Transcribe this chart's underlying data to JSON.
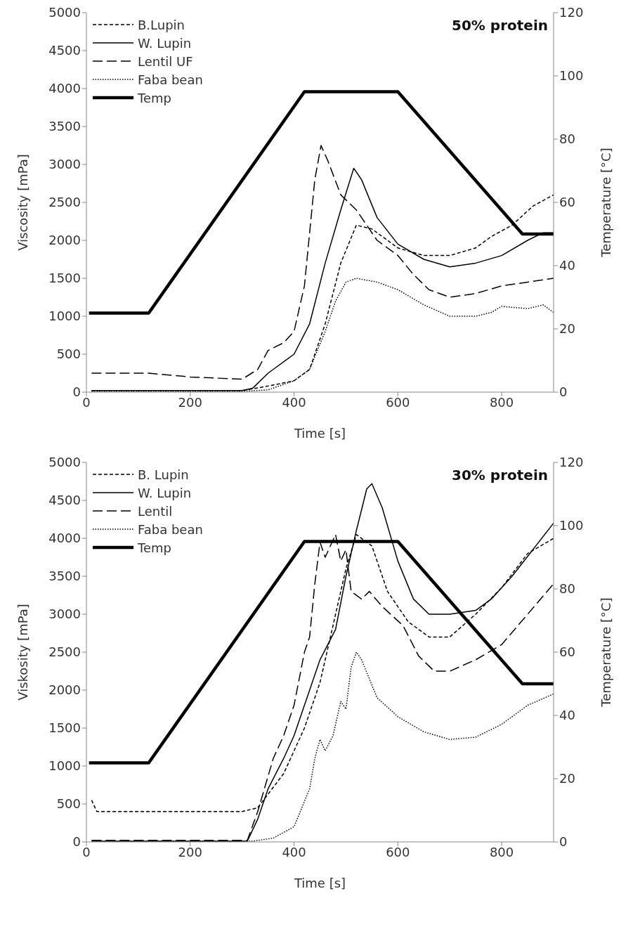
{
  "chart_data": [
    {
      "type": "line",
      "title": "50% protein",
      "xlabel": "Time [s]",
      "ylabel": "Viscosity [mPa]",
      "y2label": "Temperature [°C]",
      "xlim": [
        0,
        900
      ],
      "xticks": [
        0,
        200,
        400,
        600,
        800
      ],
      "ylim": [
        0,
        5000
      ],
      "yticks": [
        0,
        500,
        1000,
        1500,
        2000,
        2500,
        3000,
        3500,
        4000,
        4500,
        5000
      ],
      "y2lim": [
        0,
        120
      ],
      "y2ticks": [
        0,
        20,
        40,
        60,
        80,
        100,
        120
      ],
      "legend": "top left",
      "marker": "none",
      "series": [
        {
          "name": "B.Lupin",
          "color": "#000000",
          "line_style": "dashed",
          "x": [
            10,
            300,
            350,
            400,
            430,
            460,
            490,
            520,
            550,
            600,
            650,
            700,
            750,
            780,
            820,
            860,
            900
          ],
          "values": [
            20,
            20,
            80,
            150,
            300,
            900,
            1700,
            2200,
            2150,
            1900,
            1800,
            1800,
            1900,
            2050,
            2200,
            2450,
            2600
          ]
        },
        {
          "name": "W. Lupin",
          "color": "#000000",
          "line_style": "solid",
          "x": [
            10,
            300,
            320,
            350,
            400,
            430,
            460,
            490,
            515,
            530,
            560,
            600,
            650,
            700,
            750,
            800,
            850,
            880,
            900
          ],
          "values": [
            20,
            20,
            50,
            250,
            500,
            900,
            1700,
            2400,
            2950,
            2800,
            2300,
            1950,
            1750,
            1650,
            1700,
            1800,
            2000,
            2100,
            2100
          ]
        },
        {
          "name": "Lentil UF",
          "color": "#000000",
          "line_style": "dashed",
          "x": [
            10,
            120,
            200,
            300,
            330,
            350,
            380,
            400,
            420,
            440,
            452,
            465,
            490,
            520,
            560,
            600,
            630,
            660,
            700,
            750,
            800,
            850,
            900
          ],
          "values": [
            250,
            250,
            200,
            170,
            300,
            550,
            650,
            800,
            1400,
            2800,
            3250,
            3050,
            2600,
            2400,
            2000,
            1800,
            1550,
            1350,
            1250,
            1300,
            1400,
            1450,
            1500
          ]
        },
        {
          "name": "Faba bean",
          "color": "#000000",
          "line_style": "dotted",
          "x": [
            10,
            300,
            350,
            400,
            430,
            460,
            480,
            500,
            520,
            560,
            600,
            650,
            700,
            750,
            780,
            800,
            850,
            880,
            900
          ],
          "values": [
            10,
            10,
            30,
            150,
            300,
            800,
            1200,
            1450,
            1500,
            1450,
            1350,
            1150,
            1000,
            1000,
            1050,
            1130,
            1100,
            1150,
            1050
          ]
        },
        {
          "name": "Temp",
          "color": "#000000",
          "line_style": "solid",
          "axis": "y2",
          "x": [
            5,
            120,
            420,
            600,
            840,
            900
          ],
          "values": [
            25,
            25,
            95,
            95,
            50,
            50
          ]
        }
      ]
    },
    {
      "type": "line",
      "title": "30% protein",
      "xlabel": "Time [s]",
      "ylabel": "Viskosity [mPa]",
      "y2label": "Temperature [°C]",
      "xlim": [
        0,
        900
      ],
      "xticks": [
        0,
        200,
        400,
        600,
        800
      ],
      "ylim": [
        0,
        5000
      ],
      "yticks": [
        0,
        500,
        1000,
        1500,
        2000,
        2500,
        3000,
        3500,
        4000,
        4500,
        5000
      ],
      "y2lim": [
        0,
        120
      ],
      "y2ticks": [
        0,
        20,
        40,
        60,
        80,
        100,
        120
      ],
      "legend": "top left",
      "marker": "none",
      "series": [
        {
          "name": "B. Lupin",
          "color": "#000000",
          "line_style": "dashed",
          "x": [
            10,
            20,
            300,
            330,
            380,
            420,
            450,
            480,
            500,
            520,
            550,
            580,
            620,
            660,
            700,
            750,
            800,
            850,
            900
          ],
          "values": [
            550,
            400,
            400,
            450,
            900,
            1500,
            2100,
            3000,
            3600,
            4050,
            3900,
            3300,
            2900,
            2700,
            2700,
            3000,
            3350,
            3800,
            4000
          ]
        },
        {
          "name": "W. Lupin",
          "color": "#000000",
          "line_style": "solid",
          "x": [
            10,
            310,
            330,
            350,
            380,
            400,
            430,
            450,
            480,
            500,
            520,
            540,
            550,
            570,
            600,
            630,
            660,
            700,
            750,
            780,
            820,
            860,
            900
          ],
          "values": [
            10,
            10,
            300,
            700,
            1100,
            1400,
            2000,
            2400,
            2800,
            3500,
            4100,
            4650,
            4720,
            4400,
            3700,
            3200,
            3000,
            3000,
            3050,
            3200,
            3500,
            3850,
            4200
          ]
        },
        {
          "name": "Lentil",
          "color": "#000000",
          "line_style": "dashed",
          "x": [
            10,
            310,
            330,
            360,
            380,
            400,
            420,
            430,
            440,
            450,
            460,
            470,
            480,
            490,
            500,
            510,
            530,
            545,
            570,
            610,
            640,
            670,
            700,
            750,
            800,
            850,
            900
          ],
          "values": [
            20,
            20,
            400,
            1100,
            1400,
            1800,
            2500,
            2700,
            3400,
            3950,
            3750,
            3900,
            4050,
            3700,
            3850,
            3300,
            3200,
            3300,
            3100,
            2850,
            2450,
            2250,
            2250,
            2400,
            2600,
            3000,
            3400
          ]
        },
        {
          "name": "Faba bean",
          "color": "#000000",
          "line_style": "dotted",
          "x": [
            10,
            320,
            360,
            400,
            430,
            440,
            450,
            460,
            475,
            490,
            500,
            510,
            520,
            530,
            560,
            600,
            650,
            700,
            750,
            800,
            850,
            900
          ],
          "values": [
            10,
            10,
            50,
            200,
            700,
            1100,
            1350,
            1200,
            1400,
            1850,
            1750,
            2300,
            2500,
            2400,
            1900,
            1650,
            1450,
            1350,
            1380,
            1550,
            1800,
            1950
          ]
        },
        {
          "name": "Temp",
          "color": "#000000",
          "line_style": "solid",
          "axis": "y2",
          "x": [
            5,
            120,
            420,
            600,
            840,
            900
          ],
          "values": [
            25,
            25,
            95,
            95,
            50,
            50
          ]
        }
      ]
    }
  ]
}
